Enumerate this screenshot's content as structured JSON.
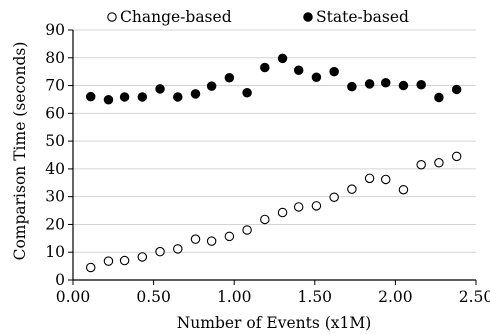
{
  "chart_data": {
    "type": "scatter",
    "title": "",
    "xlabel": "Number of Events (x1M)",
    "ylabel": "Comparison Time (seconds)",
    "xlim": [
      0,
      2.5
    ],
    "ylim": [
      0,
      90
    ],
    "x_ticks": [
      "0.00",
      "0.50",
      "1.00",
      "1.50",
      "2.00",
      "2.50"
    ],
    "y_ticks": [
      "0",
      "10",
      "20",
      "30",
      "40",
      "50",
      "60",
      "70",
      "80",
      "90"
    ],
    "grid": "horizontal",
    "legend_position": "top",
    "series": [
      {
        "name": "Change-based",
        "marker": "hollow-circle",
        "color": "#000000",
        "points": [
          [
            0.11,
            4.5
          ],
          [
            0.22,
            6.8
          ],
          [
            0.32,
            7.0
          ],
          [
            0.43,
            8.3
          ],
          [
            0.54,
            10.2
          ],
          [
            0.65,
            11.2
          ],
          [
            0.76,
            14.7
          ],
          [
            0.86,
            14.0
          ],
          [
            0.97,
            15.7
          ],
          [
            1.08,
            18.0
          ],
          [
            1.19,
            21.8
          ],
          [
            1.3,
            24.3
          ],
          [
            1.4,
            26.3
          ],
          [
            1.51,
            26.7
          ],
          [
            1.62,
            29.8
          ],
          [
            1.73,
            32.7
          ],
          [
            1.84,
            36.6
          ],
          [
            1.94,
            36.2
          ],
          [
            2.05,
            32.5
          ],
          [
            2.16,
            41.5
          ],
          [
            2.27,
            42.2
          ],
          [
            2.38,
            44.5
          ]
        ]
      },
      {
        "name": "State-based",
        "marker": "filled-circle",
        "color": "#000000",
        "points": [
          [
            0.11,
            66.0
          ],
          [
            0.22,
            64.9
          ],
          [
            0.32,
            65.9
          ],
          [
            0.43,
            65.9
          ],
          [
            0.54,
            68.8
          ],
          [
            0.65,
            65.9
          ],
          [
            0.76,
            67.0
          ],
          [
            0.86,
            69.8
          ],
          [
            0.97,
            72.8
          ],
          [
            1.08,
            67.4
          ],
          [
            1.19,
            76.5
          ],
          [
            1.3,
            79.8
          ],
          [
            1.4,
            75.5
          ],
          [
            1.51,
            73.0
          ],
          [
            1.62,
            75.0
          ],
          [
            1.73,
            69.6
          ],
          [
            1.84,
            70.6
          ],
          [
            1.94,
            71.0
          ],
          [
            2.05,
            70.0
          ],
          [
            2.16,
            70.3
          ],
          [
            2.27,
            65.7
          ],
          [
            2.38,
            68.6
          ]
        ]
      }
    ]
  }
}
